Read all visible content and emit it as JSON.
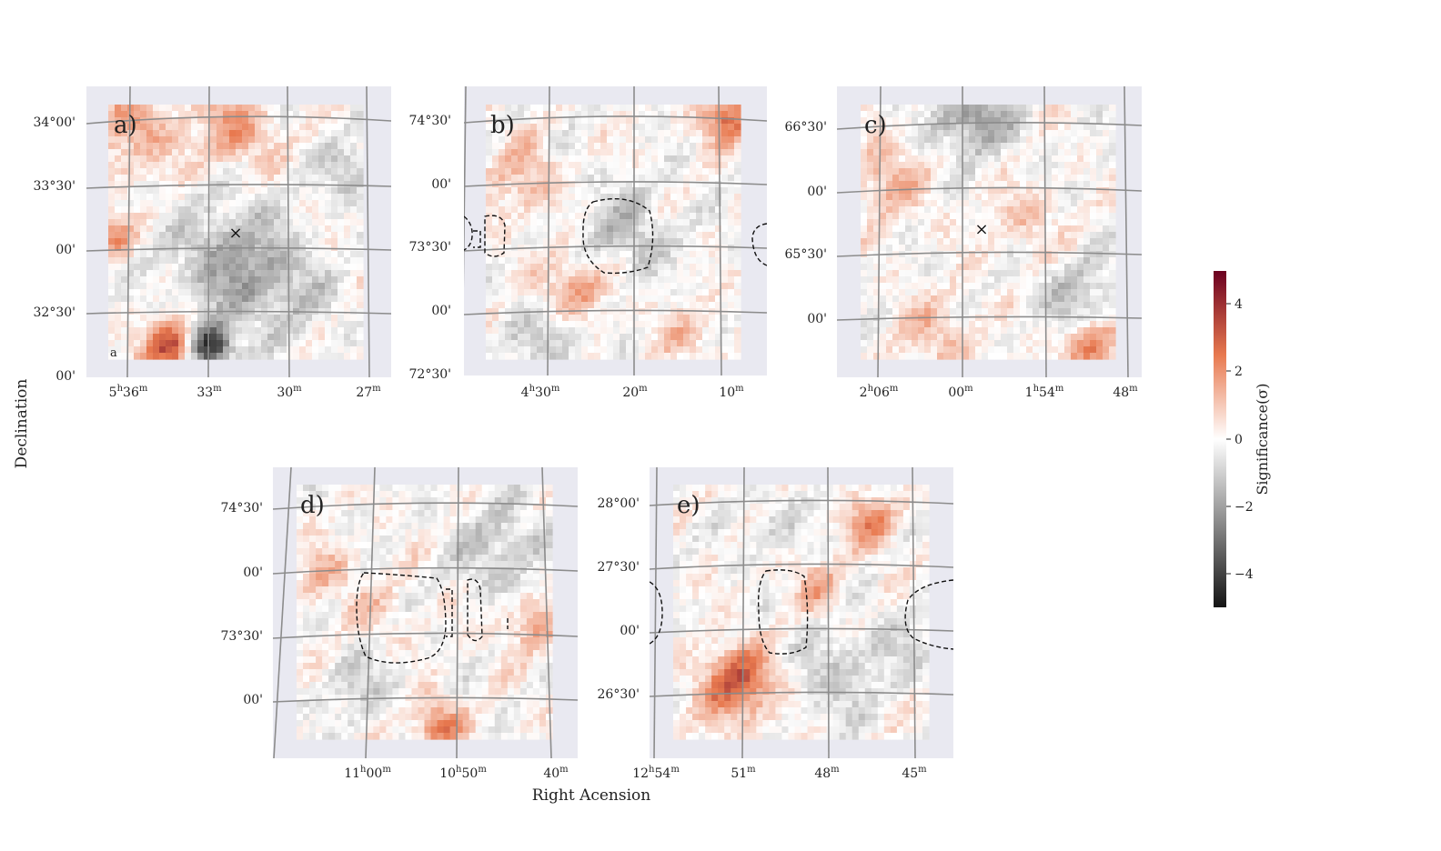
{
  "chart_data": {
    "type": "heatmap",
    "xlabel": "Right Acension",
    "ylabel": "Declination",
    "colorbar": {
      "label": "Significance(σ)",
      "range": [
        -5,
        5
      ],
      "ticks": [
        "4",
        "2",
        "0",
        "−2",
        "−4"
      ],
      "colors": {
        "low": "#141414",
        "mid": "#ffffff",
        "high": "#6b0020",
        "pos": "#e8794f",
        "neg": "#8a8a8a"
      }
    },
    "panels": [
      {
        "label": "a)",
        "extra_text": "a",
        "yticks": [
          "34°00'",
          "33°30'",
          "00'",
          "32°30'",
          "00'"
        ],
        "xticks": [
          [
            "5",
            "h",
            "36",
            "m"
          ],
          [
            "33",
            "m"
          ],
          [
            "30",
            "m"
          ],
          [
            "27",
            "m"
          ]
        ],
        "marker": "×"
      },
      {
        "label": "b)",
        "yticks": [
          "74°30'",
          "00'",
          "73°30'",
          "00'",
          "72°30'"
        ],
        "xticks": [
          [
            "4",
            "h",
            "30",
            "m"
          ],
          [
            "20",
            "m"
          ],
          [
            "10",
            "m"
          ]
        ]
      },
      {
        "label": "c)",
        "yticks": [
          "66°30'",
          "00'",
          "65°30'",
          "00'"
        ],
        "xticks": [
          [
            "2",
            "h",
            "06",
            "m"
          ],
          [
            "00",
            "m"
          ],
          [
            "1",
            "h",
            "54",
            "m"
          ],
          [
            "48",
            "m"
          ]
        ],
        "marker": "×"
      },
      {
        "label": "d)",
        "yticks": [
          "74°30'",
          "00'",
          "73°30'",
          "00'"
        ],
        "xticks": [
          [
            "11",
            "h",
            "00",
            "m"
          ],
          [
            "10",
            "h",
            "50",
            "m"
          ],
          [
            "40",
            "m"
          ]
        ]
      },
      {
        "label": "e)",
        "yticks": [
          "28°00'",
          "27°30'",
          "00'",
          "26°30'"
        ],
        "xticks": [
          [
            "12",
            "h",
            "54",
            "m"
          ],
          [
            "51",
            "m"
          ],
          [
            "48",
            "m"
          ],
          [
            "45",
            "m"
          ]
        ]
      }
    ]
  }
}
